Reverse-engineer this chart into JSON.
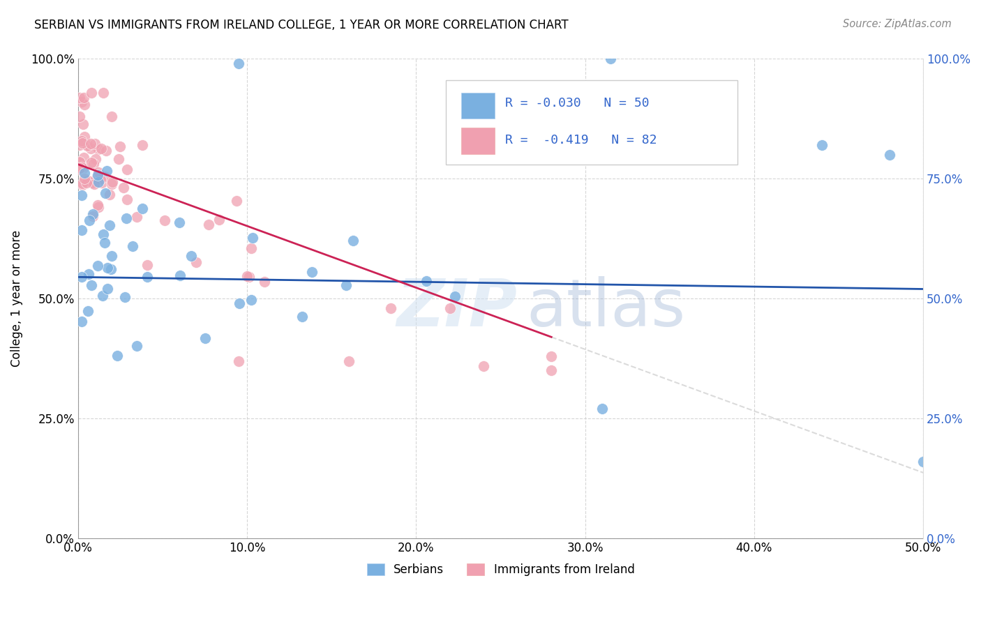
{
  "title": "SERBIAN VS IMMIGRANTS FROM IRELAND COLLEGE, 1 YEAR OR MORE CORRELATION CHART",
  "source": "Source: ZipAtlas.com",
  "ylabel_label": "College, 1 year or more",
  "legend_labels": [
    "Serbians",
    "Immigrants from Ireland"
  ],
  "R_serbian": -0.03,
  "N_serbian": 50,
  "R_ireland": -0.419,
  "N_ireland": 82,
  "color_serbian": "#7ab0e0",
  "color_ireland": "#f0a0b0",
  "trendline_serbian": "#2255aa",
  "trendline_ireland": "#cc2255",
  "trendline_extended": "#cccccc",
  "watermark_zip": "ZIP",
  "watermark_atlas": "atlas",
  "background_color": "#ffffff"
}
